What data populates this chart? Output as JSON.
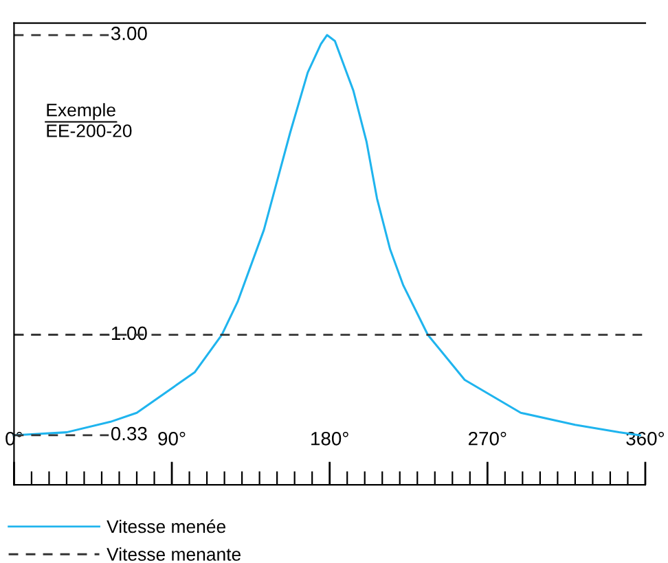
{
  "chart_data": {
    "type": "line",
    "x": [
      0,
      30,
      55,
      70,
      103,
      118.5,
      127.5,
      142.5,
      157.5,
      167.5,
      175,
      178.5,
      183,
      193.5,
      201,
      207,
      214.5,
      222,
      236,
      257,
      289,
      320,
      345,
      357
    ],
    "series": [
      {
        "name": "Vitesse menée",
        "color": "#1fb4ee",
        "line_style": "solid",
        "values": [
          0.33,
          0.35,
          0.42,
          0.48,
          0.75,
          1.0,
          1.22,
          1.7,
          2.35,
          2.75,
          2.94,
          3.0,
          2.96,
          2.63,
          2.29,
          1.91,
          1.57,
          1.33,
          1.0,
          0.7,
          0.48,
          0.4,
          0.35,
          0.33
        ]
      },
      {
        "name": "Vitesse menante",
        "color": "#333333",
        "line_style": "dashed",
        "x": [
          0,
          360
        ],
        "values": [
          1.0,
          1.0
        ]
      }
    ],
    "xlim": [
      0,
      360
    ],
    "xticks": [
      {
        "value": 0,
        "label": "0°"
      },
      {
        "value": 10,
        "label": null
      },
      {
        "value": 20,
        "label": null
      },
      {
        "value": 30,
        "label": null
      },
      {
        "value": 40,
        "label": null
      },
      {
        "value": 50,
        "label": null
      },
      {
        "value": 60,
        "label": null
      },
      {
        "value": 70,
        "label": null
      },
      {
        "value": 80,
        "label": null
      },
      {
        "value": 90,
        "label": "90°"
      },
      {
        "value": 100,
        "label": null
      },
      {
        "value": 110,
        "label": null
      },
      {
        "value": 120,
        "label": null
      },
      {
        "value": 130,
        "label": null
      },
      {
        "value": 140,
        "label": null
      },
      {
        "value": 150,
        "label": null
      },
      {
        "value": 160,
        "label": null
      },
      {
        "value": 170,
        "label": null
      },
      {
        "value": 180,
        "label": "180°"
      },
      {
        "value": 190,
        "label": null
      },
      {
        "value": 200,
        "label": null
      },
      {
        "value": 210,
        "label": null
      },
      {
        "value": 220,
        "label": null
      },
      {
        "value": 230,
        "label": null
      },
      {
        "value": 240,
        "label": null
      },
      {
        "value": 250,
        "label": null
      },
      {
        "value": 260,
        "label": null
      },
      {
        "value": 270,
        "label": "270°"
      },
      {
        "value": 280,
        "label": null
      },
      {
        "value": 290,
        "label": null
      },
      {
        "value": 300,
        "label": null
      },
      {
        "value": 310,
        "label": null
      },
      {
        "value": 320,
        "label": null
      },
      {
        "value": 330,
        "label": null
      },
      {
        "value": 340,
        "label": null
      },
      {
        "value": 350,
        "label": null
      },
      {
        "value": 360,
        "label": "360°"
      }
    ],
    "ylim": [
      0,
      3.08
    ],
    "yticks": [
      {
        "value": 0.33,
        "label": "0.33"
      },
      {
        "value": 1.0,
        "label": "1.00"
      },
      {
        "value": 3.0,
        "label": "3.00"
      }
    ],
    "annotations": [
      "Exemple",
      "EE-200-20"
    ],
    "legend": "bottom left",
    "grid": false,
    "marker": "none"
  }
}
